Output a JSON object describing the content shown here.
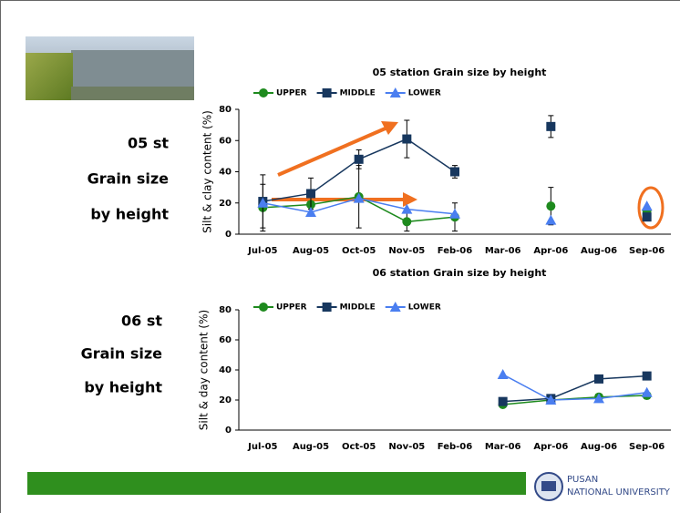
{
  "slide": {
    "labels_05": [
      "05 st",
      "Grain size",
      "by height"
    ],
    "labels_06": [
      "06 st",
      "Grain size",
      "by height"
    ]
  },
  "logo": {
    "line1": "PUSAN",
    "line2": "NATIONAL UNIVERSITY"
  },
  "chart_data": [
    {
      "type": "line",
      "title": "05 station Grain size by height",
      "y_label": "Silt & clay content (%)",
      "categories": [
        "Jul-05",
        "Aug-05",
        "Oct-05",
        "Nov-05",
        "Feb-06",
        "Mar-06",
        "Apr-06",
        "Aug-06",
        "Sep-06"
      ],
      "ylim": [
        0,
        80
      ],
      "yticks": [
        0,
        20,
        40,
        60,
        80
      ],
      "series": [
        {
          "name": "UPPER",
          "color": "#1e8a1e",
          "marker": "circle",
          "values": [
            17,
            19,
            24,
            8,
            11,
            null,
            18,
            null,
            15
          ],
          "errors": [
            15,
            6,
            20,
            6,
            9,
            null,
            12,
            null,
            null
          ]
        },
        {
          "name": "MIDDLE",
          "color": "#17375e",
          "marker": "square",
          "values": [
            21,
            26,
            48,
            61,
            40,
            null,
            69,
            null,
            11
          ],
          "errors": [
            17,
            10,
            6,
            12,
            4,
            null,
            7,
            null,
            null
          ]
        },
        {
          "name": "LOWER",
          "color": "#4a7ef0",
          "marker": "triangle",
          "values": [
            20,
            14,
            23,
            16,
            13,
            null,
            9,
            null,
            18
          ]
        }
      ]
    },
    {
      "type": "line",
      "title": "06 station Grain size by height",
      "y_label": "Silt & day content (%)",
      "categories": [
        "Jul-05",
        "Aug-05",
        "Oct-05",
        "Nov-05",
        "Feb-06",
        "Mar-06",
        "Apr-06",
        "Aug-06",
        "Sep-06"
      ],
      "ylim": [
        0,
        80
      ],
      "yticks": [
        0,
        20,
        40,
        60,
        80
      ],
      "series": [
        {
          "name": "UPPER",
          "color": "#1e8a1e",
          "marker": "circle",
          "values": [
            null,
            null,
            null,
            null,
            null,
            17,
            20,
            22,
            23
          ]
        },
        {
          "name": "MIDDLE",
          "color": "#17375e",
          "marker": "square",
          "values": [
            null,
            null,
            null,
            null,
            null,
            19,
            21,
            34,
            36
          ]
        },
        {
          "name": "LOWER",
          "color": "#4a7ef0",
          "marker": "triangle",
          "values": [
            null,
            null,
            null,
            null,
            null,
            37,
            20,
            21,
            25
          ]
        }
      ]
    }
  ]
}
